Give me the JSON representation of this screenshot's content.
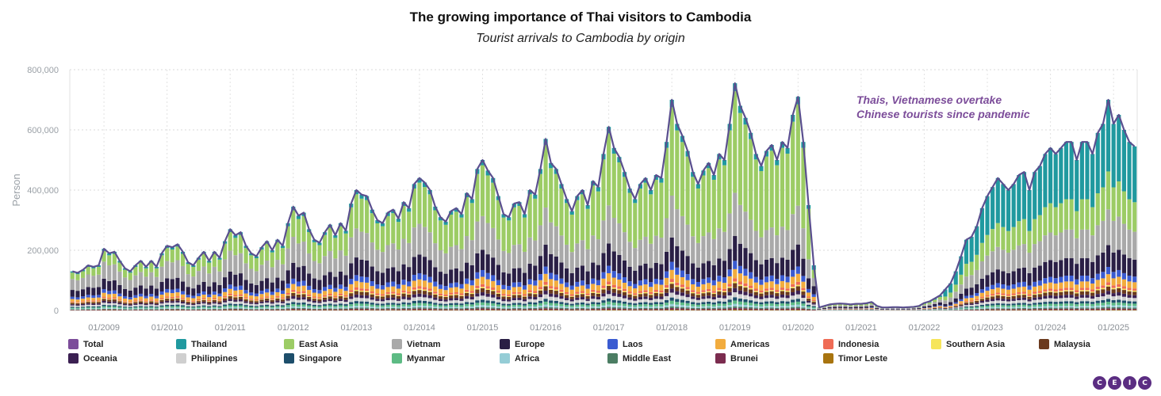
{
  "title": "The growing importance of Thai visitors to Cambodia",
  "subtitle": "Tourist arrivals to Cambodia by origin",
  "logo_letters": [
    "C",
    "E",
    "I",
    "C"
  ],
  "chart_data": {
    "type": "bar",
    "stacked": true,
    "with_line_series": "Total",
    "ylabel": "Person",
    "ylim": [
      0,
      800000
    ],
    "y_ticks": [
      "0",
      "200,000",
      "400,000",
      "600,000",
      "800,000"
    ],
    "x_tick_labels": [
      "01/2009",
      "01/2010",
      "01/2011",
      "01/2012",
      "01/2013",
      "01/2014",
      "01/2015",
      "01/2016",
      "01/2017",
      "01/2018",
      "01/2019",
      "01/2020",
      "01/2021",
      "01/2022",
      "01/2023",
      "01/2024",
      "01/2025"
    ],
    "annotation": {
      "line1": "Thais, Vietnamese overtake",
      "line2": "Chinese tourists since pandemic"
    },
    "x_start": "2008-07",
    "grid": true,
    "total_by_year": {
      "2008": [
        130000,
        125000,
        135000,
        150000,
        145000,
        150000
      ],
      "2009": [
        205000,
        190000,
        195000,
        165000,
        140000,
        130000,
        150000,
        165000,
        145000,
        165000,
        145000,
        190000
      ],
      "2010": [
        215000,
        210000,
        220000,
        195000,
        160000,
        150000,
        175000,
        195000,
        165000,
        195000,
        175000,
        230000
      ],
      "2011": [
        270000,
        250000,
        260000,
        215000,
        190000,
        180000,
        210000,
        230000,
        200000,
        235000,
        215000,
        290000
      ],
      "2012": [
        345000,
        315000,
        325000,
        270000,
        235000,
        225000,
        260000,
        285000,
        250000,
        290000,
        265000,
        355000
      ],
      "2013": [
        400000,
        385000,
        380000,
        335000,
        300000,
        290000,
        325000,
        335000,
        305000,
        360000,
        340000,
        420000
      ],
      "2014": [
        440000,
        425000,
        400000,
        345000,
        310000,
        295000,
        330000,
        340000,
        320000,
        390000,
        370000,
        470000
      ],
      "2015": [
        500000,
        465000,
        440000,
        380000,
        320000,
        310000,
        355000,
        360000,
        320000,
        400000,
        385000,
        470000
      ],
      "2016": [
        570000,
        490000,
        470000,
        420000,
        370000,
        330000,
        380000,
        400000,
        350000,
        430000,
        410000,
        520000
      ],
      "2017": [
        610000,
        540000,
        510000,
        460000,
        405000,
        370000,
        420000,
        440000,
        400000,
        450000,
        440000,
        560000
      ],
      "2018": [
        700000,
        620000,
        580000,
        530000,
        460000,
        420000,
        465000,
        490000,
        450000,
        520000,
        500000,
        620000
      ],
      "2019": [
        755000,
        680000,
        640000,
        590000,
        520000,
        480000,
        530000,
        550000,
        500000,
        560000,
        540000,
        650000
      ],
      "2020": [
        710000,
        560000,
        350000,
        150000,
        10000,
        15000,
        20000,
        22000,
        23000,
        22000,
        20000,
        22000
      ],
      "2021": [
        22000,
        24000,
        28000,
        15000,
        10000,
        10000,
        11000,
        11000,
        10000,
        11000,
        12000,
        15000
      ],
      "2022": [
        25000,
        30000,
        40000,
        50000,
        70000,
        90000,
        130000,
        180000,
        235000,
        245000,
        280000,
        340000
      ],
      "2023": [
        380000,
        410000,
        440000,
        420000,
        400000,
        420000,
        450000,
        460000,
        400000,
        460000,
        480000,
        520000
      ],
      "2024": [
        540000,
        520000,
        540000,
        560000,
        560000,
        500000,
        560000,
        560000,
        520000,
        590000,
        620000,
        700000
      ],
      "2025": [
        620000,
        650000,
        600000,
        560000,
        545000
      ]
    },
    "series": [
      {
        "name": "Thailand",
        "color": "#20999f"
      },
      {
        "name": "East Asia",
        "color": "#9ccc65"
      },
      {
        "name": "Vietnam",
        "color": "#a9a9a9"
      },
      {
        "name": "Europe",
        "color": "#2a1f45"
      },
      {
        "name": "Laos",
        "color": "#3a5bd1"
      },
      {
        "name": "Americas",
        "color": "#f2ac3e"
      },
      {
        "name": "Indonesia",
        "color": "#ef6b55"
      },
      {
        "name": "Southern Asia",
        "color": "#f6e55b"
      },
      {
        "name": "Malaysia",
        "color": "#6b3a1e"
      },
      {
        "name": "Oceania",
        "color": "#3b2052"
      },
      {
        "name": "Philippines",
        "color": "#cfcfcf"
      },
      {
        "name": "Singapore",
        "color": "#1d4e6b"
      },
      {
        "name": "Myanmar",
        "color": "#5dbb84"
      },
      {
        "name": "Africa",
        "color": "#95cdd6"
      },
      {
        "name": "Middle East",
        "color": "#4b7d63"
      },
      {
        "name": "Brunei",
        "color": "#7b2c4f"
      },
      {
        "name": "Timor Leste",
        "color": "#a8740f"
      }
    ],
    "total_series": {
      "name": "Total",
      "color": "#7c4d9a",
      "line_color": "#5a4f8f"
    },
    "legend": [
      [
        "Total",
        "#7c4d9a"
      ],
      [
        "Thailand",
        "#20999f"
      ],
      [
        "East Asia",
        "#9ccc65"
      ],
      [
        "Vietnam",
        "#a9a9a9"
      ],
      [
        "Europe",
        "#2a1f45"
      ],
      [
        "Laos",
        "#3a5bd1"
      ],
      [
        "Americas",
        "#f2ac3e"
      ],
      [
        "Indonesia",
        "#ef6b55"
      ],
      [
        "Southern Asia",
        "#f6e55b"
      ],
      [
        "Malaysia",
        "#6b3a1e"
      ],
      [
        "Oceania",
        "#3b2052"
      ],
      [
        "Philippines",
        "#cfcfcf"
      ],
      [
        "Singapore",
        "#1d4e6b"
      ],
      [
        "Myanmar",
        "#5dbb84"
      ],
      [
        "Africa",
        "#95cdd6"
      ],
      [
        "Middle East",
        "#4b7d63"
      ],
      [
        "Brunei",
        "#7b2c4f"
      ],
      [
        "Timor Leste",
        "#a8740f"
      ]
    ]
  }
}
